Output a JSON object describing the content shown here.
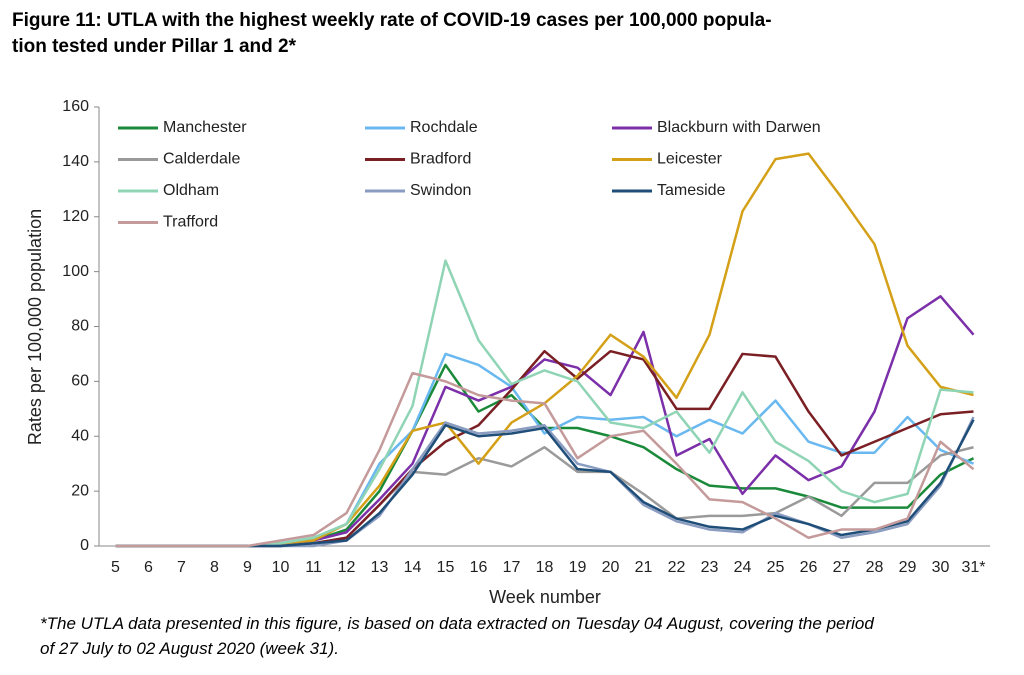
{
  "chart_data": {
    "type": "line",
    "title_lines": [
      "Figure 11: UTLA with the highest weekly rate of COVID-19 cases per 100,000 popula-",
      "tion tested under Pillar 1 and 2*"
    ],
    "xlabel": "Week number",
    "ylabel": "Rates per 100,000 population",
    "footnote_lines": [
      "*The UTLA data presented in this figure, is based on data extracted on Tuesday 04 August, covering the period",
      "of 27 July to 02 August 2020 (week 31)."
    ],
    "categories": [
      "5",
      "6",
      "7",
      "8",
      "9",
      "10",
      "11",
      "12",
      "13",
      "14",
      "15",
      "16",
      "17",
      "18",
      "19",
      "20",
      "21",
      "22",
      "23",
      "24",
      "25",
      "26",
      "27",
      "28",
      "29",
      "30",
      "31*"
    ],
    "ylim": [
      0,
      160
    ],
    "yticks": [
      0,
      20,
      40,
      60,
      80,
      100,
      120,
      140,
      160
    ],
    "series": [
      {
        "name": "Manchester",
        "color": "#1a8a3a",
        "values": [
          0,
          0,
          0,
          0,
          0,
          1,
          2,
          6,
          20,
          42,
          66,
          49,
          55,
          43,
          43,
          40,
          36,
          28,
          22,
          21,
          21,
          18,
          14,
          14,
          14,
          26,
          32
        ]
      },
      {
        "name": "Rochdale",
        "color": "#6ab8f0",
        "values": [
          0,
          0,
          0,
          0,
          0,
          1,
          3,
          8,
          30,
          42,
          70,
          66,
          58,
          41,
          47,
          46,
          47,
          40,
          46,
          41,
          53,
          38,
          34,
          34,
          47,
          35,
          30
        ]
      },
      {
        "name": "Blackburn with Darwen",
        "color": "#7b2fa8",
        "values": [
          0,
          0,
          0,
          0,
          0,
          1,
          2,
          5,
          17,
          30,
          58,
          53,
          58,
          68,
          65,
          55,
          78,
          33,
          39,
          19,
          33,
          24,
          29,
          49,
          83,
          91,
          77
        ]
      },
      {
        "name": "Calderdale",
        "color": "#9a9a9a",
        "values": [
          0,
          0,
          0,
          0,
          0,
          0,
          1,
          3,
          15,
          27,
          26,
          32,
          29,
          36,
          27,
          27,
          19,
          10,
          11,
          11,
          12,
          18,
          11,
          23,
          23,
          33,
          36
        ]
      },
      {
        "name": "Bradford",
        "color": "#7a1f24",
        "values": [
          0,
          0,
          0,
          0,
          0,
          0,
          1,
          3,
          15,
          28,
          38,
          44,
          57,
          71,
          61,
          71,
          68,
          50,
          50,
          70,
          69,
          49,
          33,
          38,
          43,
          48,
          49
        ]
      },
      {
        "name": "Leicester",
        "color": "#d4a017",
        "values": [
          0,
          0,
          0,
          0,
          0,
          1,
          2,
          8,
          22,
          42,
          45,
          30,
          45,
          52,
          62,
          77,
          69,
          54,
          77,
          122,
          141,
          143,
          127,
          110,
          73,
          58,
          55
        ]
      },
      {
        "name": "Oldham",
        "color": "#8fd4b4",
        "values": [
          0,
          0,
          0,
          0,
          0,
          1,
          3,
          8,
          28,
          51,
          104,
          75,
          59,
          64,
          60,
          45,
          43,
          49,
          34,
          56,
          38,
          31,
          20,
          16,
          19,
          57,
          56
        ]
      },
      {
        "name": "Swindon",
        "color": "#8a9cc0",
        "values": [
          0,
          0,
          0,
          0,
          0,
          0,
          0,
          2,
          11,
          28,
          45,
          41,
          42,
          44,
          30,
          27,
          15,
          9,
          6,
          5,
          12,
          8,
          3,
          5,
          8,
          22,
          47
        ]
      },
      {
        "name": "Tameside",
        "color": "#1f4e79",
        "values": [
          0,
          0,
          0,
          0,
          0,
          0,
          1,
          2,
          12,
          26,
          44,
          40,
          41,
          43,
          28,
          27,
          16,
          10,
          7,
          6,
          11,
          8,
          4,
          6,
          9,
          23,
          46
        ]
      },
      {
        "name": "Trafford",
        "color": "#c49a9a",
        "values": [
          0,
          0,
          0,
          0,
          0,
          2,
          4,
          12,
          35,
          63,
          60,
          55,
          53,
          52,
          32,
          40,
          42,
          30,
          17,
          16,
          10,
          3,
          6,
          6,
          10,
          38,
          28
        ]
      }
    ]
  }
}
